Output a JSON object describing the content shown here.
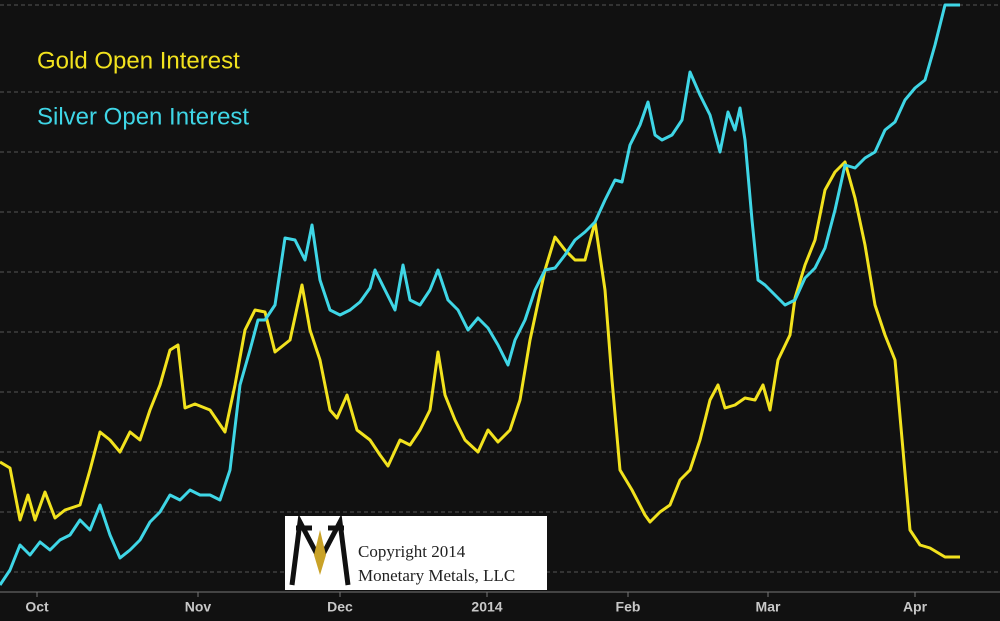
{
  "chart_data": {
    "type": "line",
    "xlim": [
      0,
      100
    ],
    "ylim": [
      -20,
      572
    ],
    "xticks": [
      {
        "value": 3.7,
        "label": "Oct"
      },
      {
        "value": 19.8,
        "label": "Nov"
      },
      {
        "value": 34,
        "label": "Dec"
      },
      {
        "value": 48.7,
        "label": "2014"
      },
      {
        "value": 62.8,
        "label": "Feb"
      },
      {
        "value": 76.8,
        "label": "Mar"
      },
      {
        "value": 91.5,
        "label": "Apr"
      }
    ],
    "gridlines": [
      0,
      60,
      120,
      180,
      240,
      300,
      360,
      420,
      480,
      567
    ],
    "series": [
      {
        "name": "Gold Open Interest",
        "color": "#f2e21e",
        "x": [
          0,
          1,
          2,
          2.8,
          3.5,
          4.5,
          5.5,
          6.5,
          8,
          9,
          10,
          11,
          12,
          13,
          14,
          15,
          16,
          17,
          17.8,
          18.5,
          19.5,
          21,
          22.5,
          23.5,
          24.5,
          25.5,
          26.5,
          27.5,
          29,
          30.2,
          31,
          32,
          33,
          33.7,
          34.7,
          35.7,
          37,
          38,
          38.8,
          40,
          41,
          42,
          43,
          43.8,
          44.5,
          45.5,
          46.5,
          47.8,
          48.8,
          49.8,
          51,
          52,
          53,
          54.5,
          55.5,
          56.5,
          57.5,
          58.5,
          59.5,
          60.5,
          61.2,
          62,
          63.2,
          64.5,
          65,
          66,
          67,
          68,
          69,
          70,
          71,
          71.8,
          72.5,
          73.5,
          74.5,
          75.5,
          76.3,
          77,
          77.8,
          79,
          79.5,
          80.5,
          81.5,
          82.5,
          83.5,
          84.5,
          85.5,
          86.5,
          87.5,
          88.5,
          89.5,
          90.3,
          91,
          92,
          93,
          94.5,
          96
        ],
        "values": [
          110,
          104,
          52,
          77,
          52,
          80,
          54,
          62,
          67,
          102,
          140,
          132,
          120,
          140,
          132,
          162,
          187,
          222,
          227,
          164,
          168,
          162,
          140,
          187,
          242,
          262,
          260,
          220,
          232,
          287,
          242,
          212,
          162,
          154,
          177,
          142,
          132,
          117,
          106,
          132,
          127,
          142,
          162,
          220,
          177,
          152,
          132,
          120,
          142,
          130,
          142,
          172,
          232,
          302,
          335,
          322,
          312,
          312,
          350,
          282,
          192,
          102,
          82,
          57,
          50,
          60,
          67,
          92,
          102,
          132,
          172,
          187,
          164,
          167,
          174,
          172,
          187,
          162,
          212,
          237,
          274,
          307,
          332,
          382,
          400,
          410,
          374,
          327,
          267,
          237,
          212,
          122,
          42,
          27,
          24,
          15,
          15
        ]
      },
      {
        "name": "Silver Open Interest",
        "color": "#3fd6e6",
        "x": [
          0,
          1,
          2,
          3,
          4,
          5,
          6,
          7,
          8,
          9,
          10,
          11,
          12,
          13,
          14,
          15,
          16,
          17,
          18,
          19,
          20,
          21,
          22,
          23,
          24,
          25,
          25.8,
          26.5,
          27.5,
          28.5,
          29.5,
          30.5,
          31.2,
          32,
          33,
          34,
          35,
          36,
          37,
          37.5,
          38.5,
          39.5,
          40.3,
          41,
          42,
          43,
          43.8,
          44.8,
          45.8,
          46.8,
          47.8,
          48.8,
          49.8,
          50.8,
          51.5,
          52.5,
          53.5,
          54.5,
          55.5,
          56.5,
          57.5,
          58.5,
          59.5,
          60.5,
          61.5,
          62.2,
          63,
          64,
          64.8,
          65.5,
          66.2,
          67.2,
          68.2,
          69,
          70,
          71,
          72,
          72.8,
          73.5,
          74,
          74.5,
          75.2,
          75.8,
          76.5,
          77.5,
          78.5,
          79.5,
          80.5,
          81.5,
          82.5,
          83.5,
          84.5,
          85.5,
          86.5,
          87.5,
          88.5,
          89.5,
          90.5,
          91.5,
          92.5,
          93.5,
          94.5,
          96
        ],
        "values": [
          -13,
          2,
          27,
          17,
          30,
          22,
          32,
          37,
          52,
          42,
          67,
          37,
          14,
          22,
          32,
          50,
          60,
          77,
          72,
          82,
          77,
          77,
          72,
          102,
          187,
          222,
          252,
          252,
          267,
          334,
          332,
          312,
          347,
          292,
          262,
          257,
          262,
          270,
          284,
          302,
          282,
          262,
          307,
          272,
          267,
          282,
          302,
          272,
          262,
          242,
          254,
          244,
          227,
          207,
          232,
          252,
          282,
          302,
          304,
          317,
          332,
          340,
          350,
          372,
          392,
          390,
          427,
          447,
          470,
          437,
          432,
          437,
          452,
          500,
          477,
          457,
          420,
          460,
          442,
          464,
          432,
          352,
          292,
          287,
          277,
          267,
          272,
          294,
          304,
          324,
          362,
          407,
          404,
          414,
          420,
          442,
          450,
          472,
          484,
          492,
          527,
          567,
          567
        ]
      }
    ],
    "watermark": {
      "line1": "Copyright 2014",
      "line2": "Monetary Metals, LLC"
    }
  }
}
